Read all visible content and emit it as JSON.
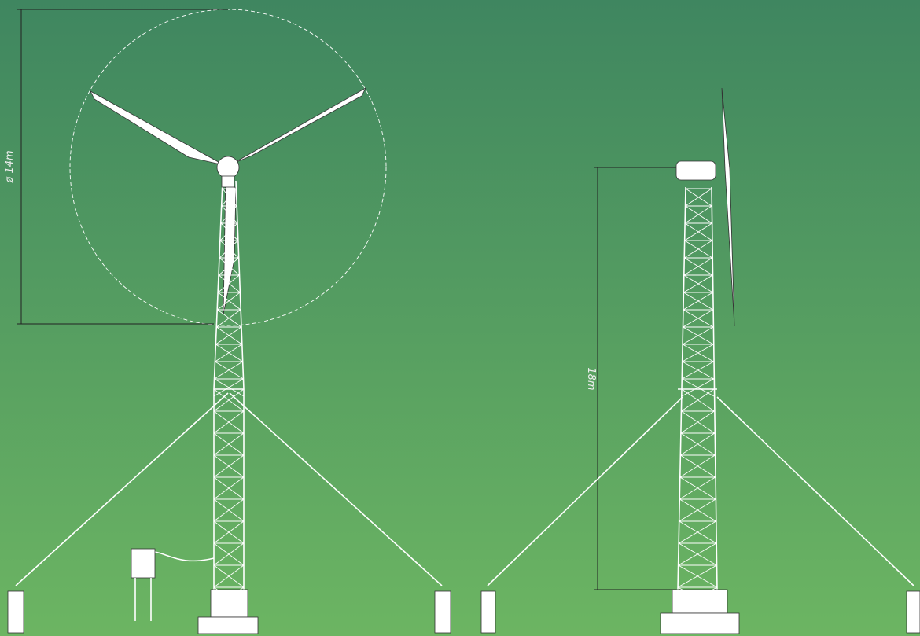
{
  "dimensions": {
    "rotor_diameter": "ø 14m",
    "hub_height": "18m"
  }
}
